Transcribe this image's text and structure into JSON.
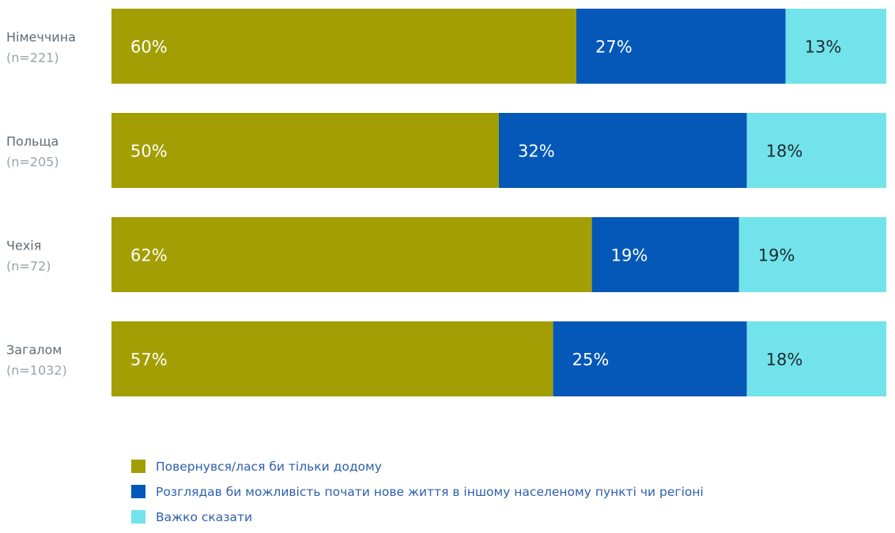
{
  "chart_data": {
    "type": "bar",
    "orientation": "horizontal",
    "stacked": true,
    "percent_scale": true,
    "categories": [
      {
        "name": "Німеччина",
        "n_label": "(n=221)"
      },
      {
        "name": "Польща",
        "n_label": "(n=205)"
      },
      {
        "name": "Чехія",
        "n_label": "(n=72)"
      },
      {
        "name": "Загалом",
        "n_label": "(n=1032)"
      }
    ],
    "series": [
      {
        "name": "Повернувся/лася би тільки додому",
        "color": "#a39e03",
        "label_color": "#ffffff",
        "values": [
          60,
          50,
          62,
          57
        ],
        "labels": [
          "60%",
          "50%",
          "62%",
          "57%"
        ]
      },
      {
        "name": "Розглядав би можливість почати нове життя в іншому населеному пункті чи регіоні",
        "color": "#0558b8",
        "label_color": "#ffffff",
        "values": [
          27,
          32,
          19,
          25
        ],
        "labels": [
          "27%",
          "32%",
          "19%",
          "25%"
        ]
      },
      {
        "name": "Важко сказати",
        "color": "#72e3eb",
        "label_color": "#1f2a30",
        "values": [
          13,
          18,
          19,
          18
        ],
        "labels": [
          "13%",
          "18%",
          "19%",
          "18%"
        ]
      }
    ],
    "xlim": [
      0,
      100
    ],
    "grid": false,
    "legend_position": "bottom-left"
  }
}
